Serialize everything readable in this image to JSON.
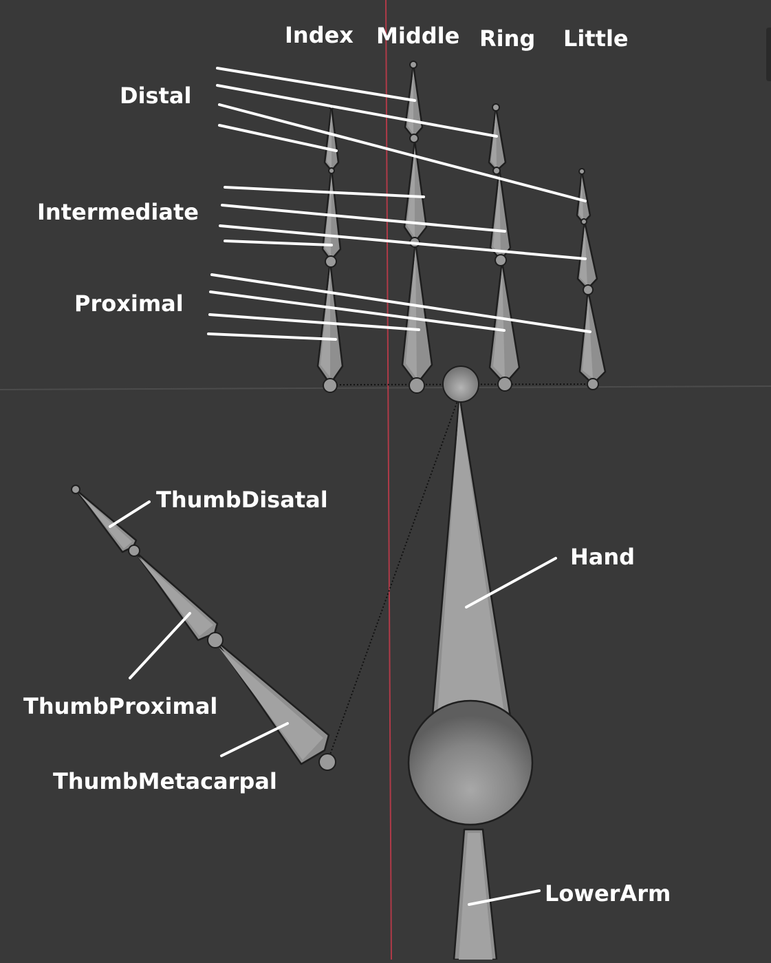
{
  "columns": {
    "index": "Index",
    "middle": "Middle",
    "ring": "Ring",
    "little": "Little"
  },
  "rows": {
    "distal": "Distal",
    "intermediate": "Intermediate",
    "proximal": "Proximal"
  },
  "thumb": {
    "distal": "ThumbDisatal",
    "proximal": "ThumbProximal",
    "metacarpal": "ThumbMetacarpal"
  },
  "hand": "Hand",
  "lower_arm": "LowerArm",
  "colors": {
    "background": "#393939",
    "bone": "#8f8f8f",
    "bone_outline": "#1e1e1e",
    "axis_red": "#b03a48",
    "label": "#ffffff"
  }
}
